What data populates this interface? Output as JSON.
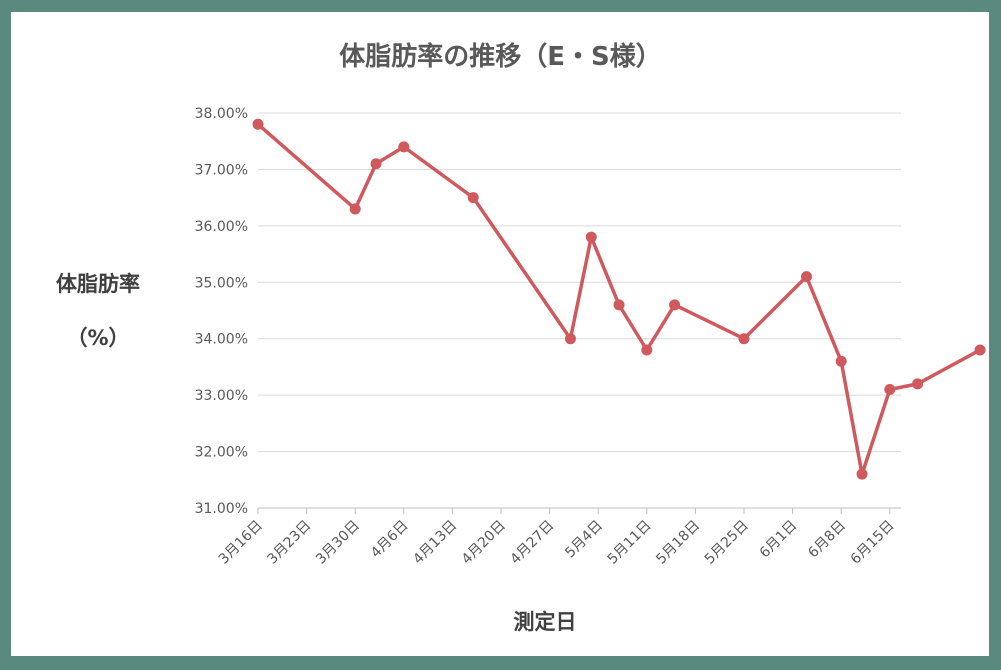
{
  "chart_data": {
    "type": "line",
    "title": "体脂肪率の推移（E・S様）",
    "ylabel_line1": "体脂肪率",
    "ylabel_line2": "（%）",
    "xlabel": "測定日",
    "ylim": [
      31.0,
      38.0
    ],
    "yticks": [
      "38.00%",
      "37.00%",
      "36.00%",
      "35.00%",
      "34.00%",
      "33.00%",
      "32.00%",
      "31.00%"
    ],
    "xticks": [
      "3月16日",
      "3月23日",
      "3月30日",
      "4月6日",
      "4月13日",
      "4月20日",
      "4月27日",
      "5月4日",
      "5月11日",
      "5月18日",
      "5月25日",
      "6月1日",
      "6月8日",
      "6月15日"
    ],
    "x_start": "3月16日",
    "series": [
      {
        "color": "#d0595e",
        "points": [
          {
            "x": "3月16日",
            "y": 37.8
          },
          {
            "x": "3月30日",
            "y": 36.3
          },
          {
            "x": "4月2日",
            "y": 37.1
          },
          {
            "x": "4月6日",
            "y": 37.4
          },
          {
            "x": "4月16日",
            "y": 36.5
          },
          {
            "x": "4月30日",
            "y": 34.0
          },
          {
            "x": "5月3日",
            "y": 35.8
          },
          {
            "x": "5月7日",
            "y": 34.6
          },
          {
            "x": "5月11日",
            "y": 33.8
          },
          {
            "x": "5月15日",
            "y": 34.6
          },
          {
            "x": "5月25日",
            "y": 34.0
          },
          {
            "x": "6月3日",
            "y": 35.1
          },
          {
            "x": "6月8日",
            "y": 33.6
          },
          {
            "x": "6月11日",
            "y": 31.6
          },
          {
            "x": "6月15日",
            "y": 33.1
          },
          {
            "x": "6月19日",
            "y": 33.2
          },
          {
            "x": "6月28日",
            "y": 33.8
          }
        ]
      }
    ],
    "grid": true,
    "legend": "none"
  }
}
